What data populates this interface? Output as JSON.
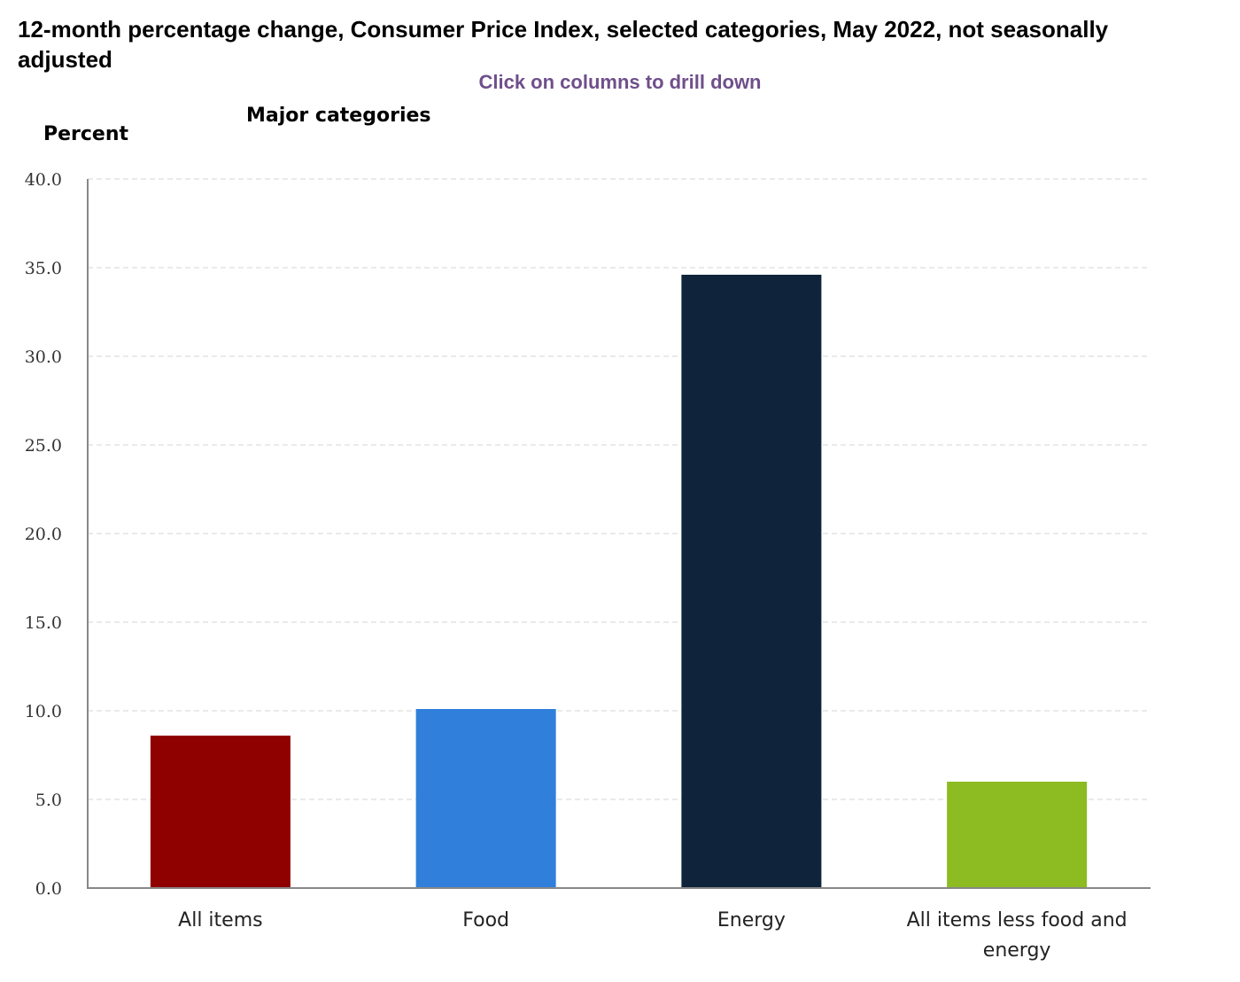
{
  "title": "12-month percentage change, Consumer Price Index, selected categories, May 2022, not seasonally adjusted",
  "hint": "Click on columns to drill down",
  "subtitle": "Major categories",
  "chart_data": {
    "type": "bar",
    "title": "12-month percentage change, Consumer Price Index, selected categories, May 2022, not seasonally adjusted",
    "subtitle": "Major categories",
    "xlabel": "",
    "ylabel": "Percent",
    "ylim": [
      0,
      40
    ],
    "yticks": [
      "0.0",
      "5.0",
      "10.0",
      "15.0",
      "20.0",
      "25.0",
      "30.0",
      "35.0",
      "40.0"
    ],
    "grid": true,
    "categories": [
      "All items",
      "Food",
      "Energy",
      "All items less food and energy"
    ],
    "category_lines": [
      [
        "All items"
      ],
      [
        "Food"
      ],
      [
        "Energy"
      ],
      [
        "All items less food and",
        "energy"
      ]
    ],
    "values": [
      8.6,
      10.1,
      34.6,
      6.0
    ],
    "colors": [
      "#8f0000",
      "#2f7fdb",
      "#0f233b",
      "#8cbb22"
    ]
  }
}
